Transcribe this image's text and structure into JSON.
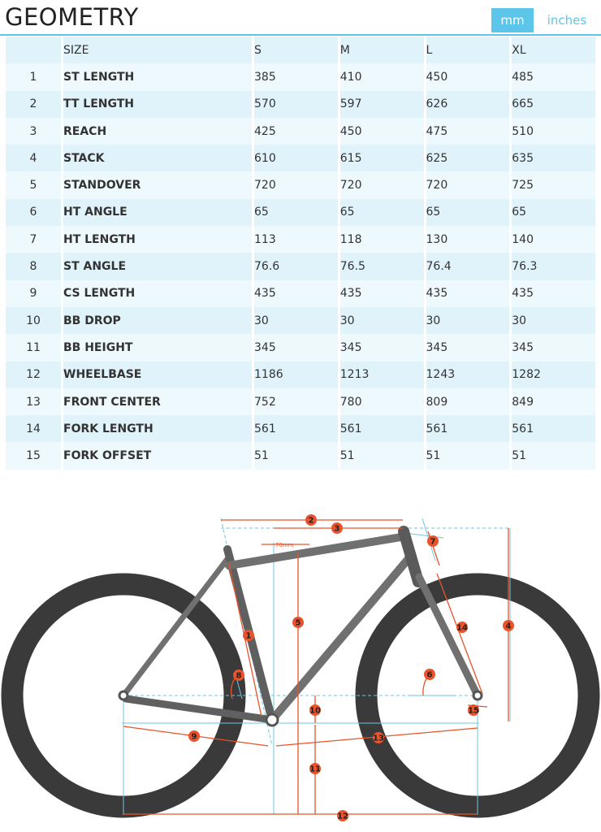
{
  "header": {
    "title": "GEOMETRY",
    "unit_mm": "mm",
    "unit_inches": "inches"
  },
  "table": {
    "columns": [
      "",
      "SIZE",
      "S",
      "M",
      "L",
      "XL"
    ],
    "rows": [
      {
        "num": "1",
        "label": "ST LENGTH",
        "values": [
          "385",
          "410",
          "450",
          "485"
        ]
      },
      {
        "num": "2",
        "label": "TT LENGTH",
        "values": [
          "570",
          "597",
          "626",
          "665"
        ]
      },
      {
        "num": "3",
        "label": "REACH",
        "values": [
          "425",
          "450",
          "475",
          "510"
        ]
      },
      {
        "num": "4",
        "label": "STACK",
        "values": [
          "610",
          "615",
          "625",
          "635"
        ]
      },
      {
        "num": "5",
        "label": "STANDOVER",
        "values": [
          "720",
          "720",
          "720",
          "725"
        ]
      },
      {
        "num": "6",
        "label": "HT ANGLE",
        "values": [
          "65",
          "65",
          "65",
          "65"
        ]
      },
      {
        "num": "7",
        "label": "HT LENGTH",
        "values": [
          "113",
          "118",
          "130",
          "140"
        ]
      },
      {
        "num": "8",
        "label": "ST ANGLE",
        "values": [
          "76.6",
          "76.5",
          "76.4",
          "76.3"
        ]
      },
      {
        "num": "9",
        "label": "CS LENGTH",
        "values": [
          "435",
          "435",
          "435",
          "435"
        ]
      },
      {
        "num": "10",
        "label": "BB DROP",
        "values": [
          "30",
          "30",
          "30",
          "30"
        ]
      },
      {
        "num": "11",
        "label": "BB HEIGHT",
        "values": [
          "345",
          "345",
          "345",
          "345"
        ]
      },
      {
        "num": "12",
        "label": "WHEELBASE",
        "values": [
          "1186",
          "1213",
          "1243",
          "1282"
        ]
      },
      {
        "num": "13",
        "label": "FRONT CENTER",
        "values": [
          "752",
          "780",
          "809",
          "849"
        ]
      },
      {
        "num": "14",
        "label": "FORK LENGTH",
        "values": [
          "561",
          "561",
          "561",
          "561"
        ]
      },
      {
        "num": "15",
        "label": "FORK OFFSET",
        "values": [
          "51",
          "51",
          "51",
          "51"
        ]
      }
    ]
  },
  "diagram": {
    "offset_label": "70mm",
    "markers": [
      "1",
      "2",
      "3",
      "4",
      "5",
      "6",
      "7",
      "8",
      "9",
      "10",
      "11",
      "12",
      "13",
      "14",
      "15"
    ],
    "colors": {
      "dimension": "#e8532b",
      "guide": "#6fc6e0",
      "frame": "#707070",
      "tire": "#3a3a3a"
    }
  }
}
